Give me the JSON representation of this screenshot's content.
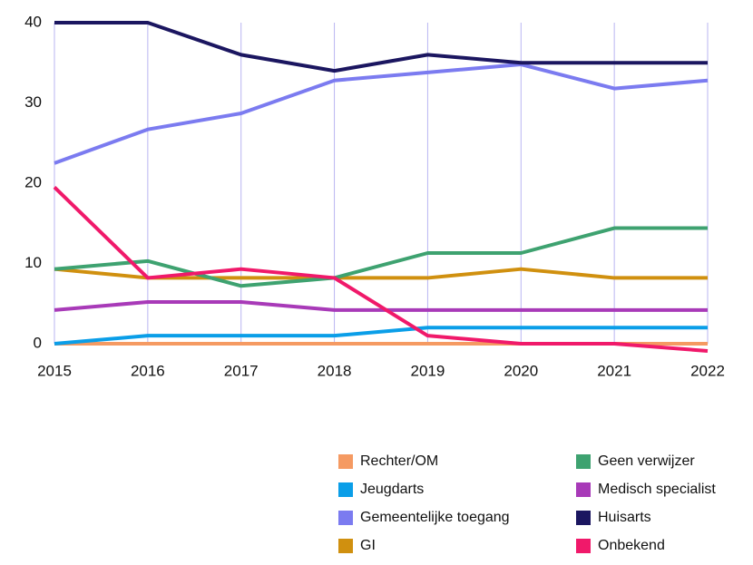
{
  "chart_data": {
    "type": "line",
    "x": [
      2015,
      2016,
      2017,
      2018,
      2019,
      2020,
      2021,
      2022
    ],
    "xlim": [
      2015,
      2022
    ],
    "xticks": [
      2015,
      2016,
      2017,
      2018,
      2019,
      2020,
      2021,
      2022
    ],
    "ylim": [
      0,
      40
    ],
    "yticks": [
      0,
      10,
      20,
      30,
      40
    ],
    "grid": "x",
    "series": [
      {
        "name": "Rechter/OM",
        "color": "#f59a62",
        "values": [
          0,
          0,
          0,
          0,
          0,
          0,
          0,
          0
        ]
      },
      {
        "name": "Jeugdarts",
        "color": "#0a9ee8",
        "values": [
          0,
          1,
          1,
          1,
          2,
          2,
          2,
          2
        ]
      },
      {
        "name": "Gemeentelijke toegang",
        "color": "#7b7bf0",
        "values": [
          22.5,
          26.7,
          28.7,
          32.8,
          33.8,
          34.8,
          31.8,
          32.8
        ]
      },
      {
        "name": "GI",
        "color": "#d0900f",
        "values": [
          9.3,
          8.2,
          8.2,
          8.2,
          8.2,
          9.3,
          8.2,
          8.2
        ]
      },
      {
        "name": "Geen verwijzer",
        "color": "#3ea270",
        "values": [
          9.3,
          10.3,
          7.2,
          8.2,
          11.3,
          11.3,
          14.4,
          14.4
        ]
      },
      {
        "name": "Medisch specialist",
        "color": "#a83ab8",
        "values": [
          4.2,
          5.2,
          5.2,
          4.2,
          4.2,
          4.2,
          4.2,
          4.2
        ]
      },
      {
        "name": "Huisarts",
        "color": "#1b1660",
        "values": [
          40,
          40,
          36,
          34,
          36,
          35,
          35,
          35
        ]
      },
      {
        "name": "Onbekend",
        "color": "#f0196a",
        "values": [
          19.5,
          8.2,
          9.3,
          8.2,
          1,
          0,
          0,
          -0.9
        ]
      }
    ]
  }
}
